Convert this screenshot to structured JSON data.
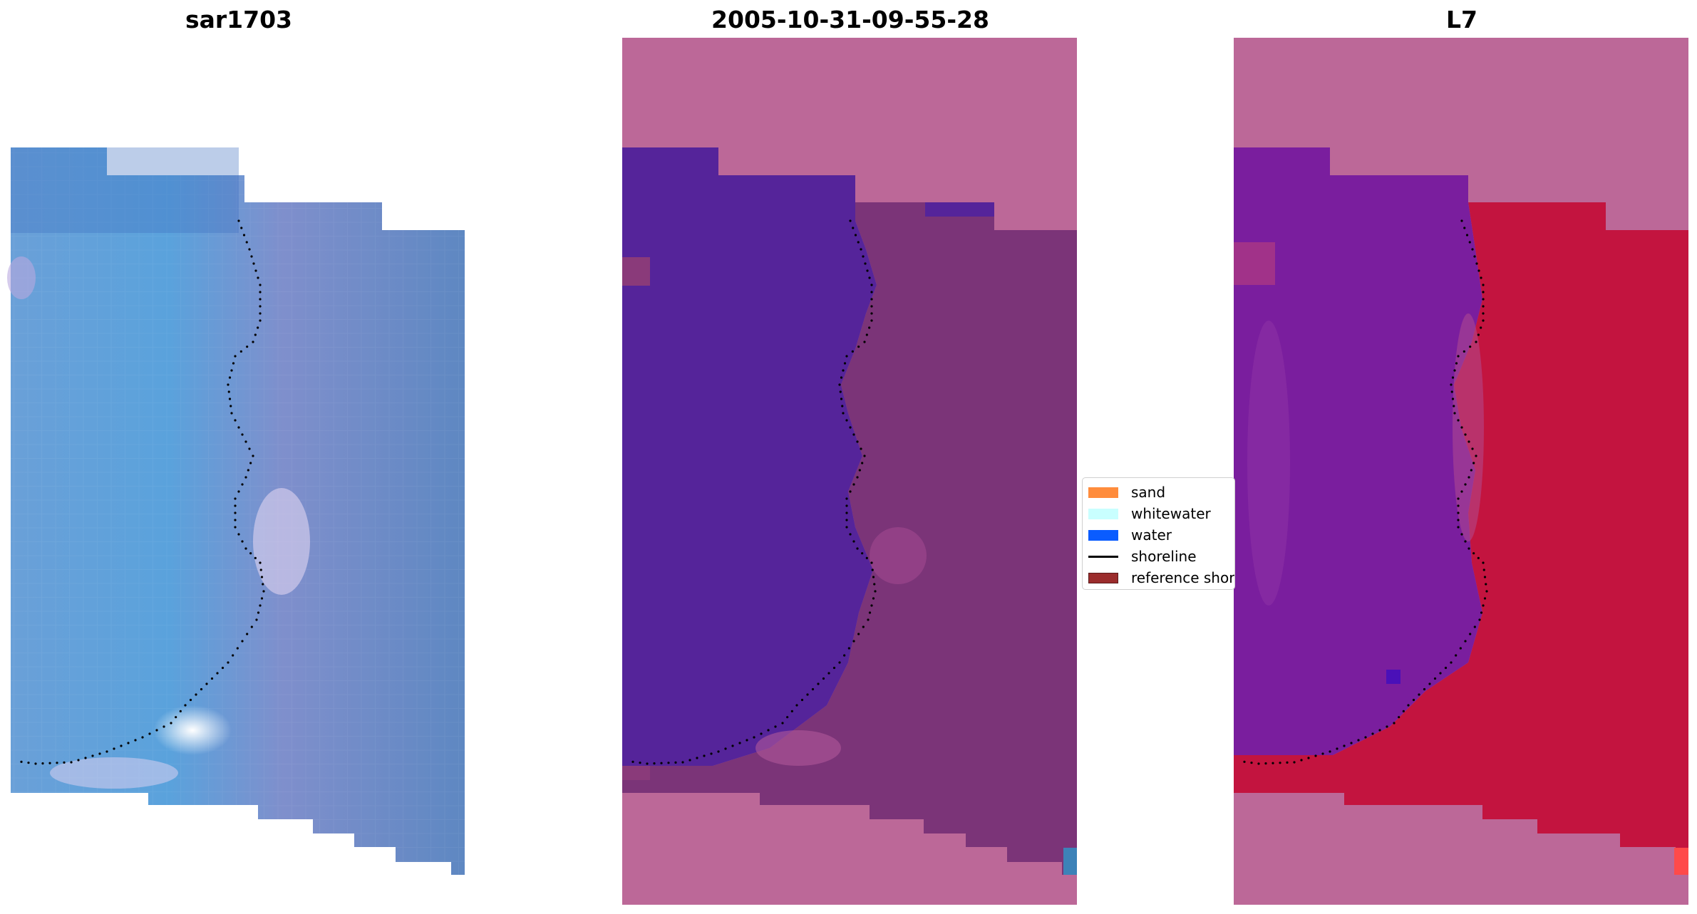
{
  "panels": [
    {
      "title": "sar1703"
    },
    {
      "title": "2005-10-31-09-55-28"
    },
    {
      "title": "L7"
    }
  ],
  "legend": {
    "items": [
      {
        "label": "sand",
        "color": "#ff8c3c",
        "kind": "patch"
      },
      {
        "label": "whitewater",
        "color": "#c9ffff",
        "kind": "patch"
      },
      {
        "label": "water",
        "color": "#0a5cff",
        "kind": "patch"
      },
      {
        "label": "shoreline",
        "color": "#000000",
        "kind": "line"
      },
      {
        "label": "reference shoreline",
        "color": "#9b2c2c",
        "kind": "patch"
      }
    ]
  },
  "colors": {
    "rgb_base": "#5a86c4",
    "classified_water": "#55249a",
    "classified_land": "#7b3478",
    "mask_pink": "#bc6898",
    "mndwi_land": "#c3143f",
    "mndwi_water": "#7a1e9e"
  }
}
